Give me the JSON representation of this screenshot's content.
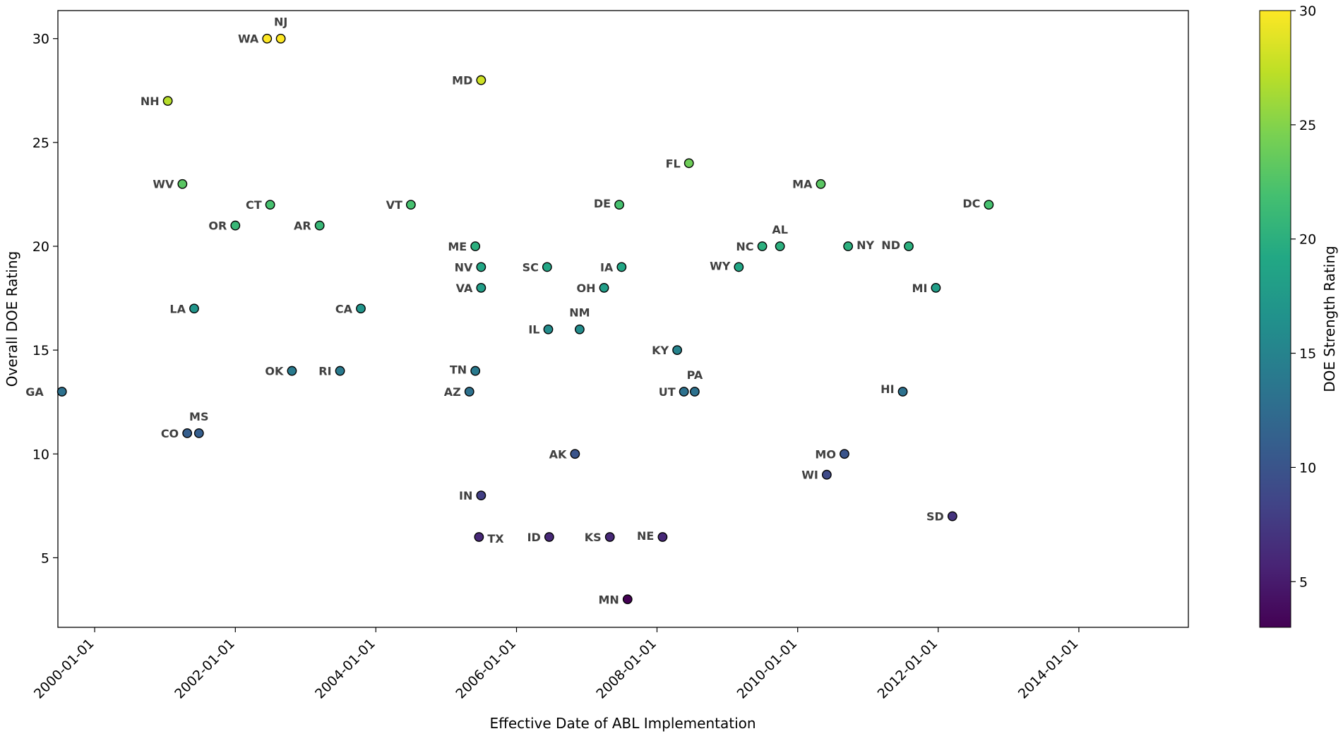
{
  "chart_data": {
    "type": "scatter",
    "xlabel": "Effective Date of ABL Implementation",
    "ylabel": "Overall DOE Rating",
    "x_type": "date",
    "xlim": [
      "1999-06-24",
      "2015-07-24"
    ],
    "ylim": [
      1.65,
      31.35
    ],
    "x_ticks": [
      "2000-01-01",
      "2002-01-01",
      "2004-01-01",
      "2006-01-01",
      "2008-01-01",
      "2010-01-01",
      "2012-01-01",
      "2014-01-01"
    ],
    "y_ticks": [
      5,
      10,
      15,
      20,
      25,
      30
    ],
    "grid": false,
    "colorbar": {
      "label": "DOE Strength Rating",
      "colormap": "viridis",
      "range": [
        3,
        30
      ],
      "ticks": [
        5,
        10,
        15,
        20,
        25,
        30
      ]
    },
    "points": [
      {
        "label": "GA",
        "date": "1999-07-15",
        "value": 13
      },
      {
        "label": "CO",
        "date": "2001-04-26",
        "value": 11
      },
      {
        "label": "MS",
        "date": "2001-06-26",
        "value": 11
      },
      {
        "label": "NH",
        "date": "2001-01-15",
        "value": 27
      },
      {
        "label": "WV",
        "date": "2001-04-01",
        "value": 23
      },
      {
        "label": "LA",
        "date": "2001-06-01",
        "value": 17
      },
      {
        "label": "OR",
        "date": "2002-01-01",
        "value": 21
      },
      {
        "label": "WA",
        "date": "2002-06-15",
        "value": 30
      },
      {
        "label": "NJ",
        "date": "2002-08-25",
        "value": 30
      },
      {
        "label": "CT",
        "date": "2002-07-01",
        "value": 22
      },
      {
        "label": "OK",
        "date": "2002-10-22",
        "value": 14
      },
      {
        "label": "AR",
        "date": "2003-03-15",
        "value": 21
      },
      {
        "label": "RI",
        "date": "2003-06-29",
        "value": 14
      },
      {
        "label": "CA",
        "date": "2003-10-15",
        "value": 17
      },
      {
        "label": "VT",
        "date": "2004-07-01",
        "value": 22
      },
      {
        "label": "ME",
        "date": "2005-06-01",
        "value": 20
      },
      {
        "label": "NV",
        "date": "2005-07-01",
        "value": 19
      },
      {
        "label": "VA",
        "date": "2005-07-01",
        "value": 18
      },
      {
        "label": "TN",
        "date": "2005-06-01",
        "value": 14
      },
      {
        "label": "AZ",
        "date": "2005-05-01",
        "value": 13
      },
      {
        "label": "MD",
        "date": "2005-07-01",
        "value": 28
      },
      {
        "label": "IN",
        "date": "2005-07-01",
        "value": 8
      },
      {
        "label": "TX",
        "date": "2005-06-20",
        "value": 6
      },
      {
        "label": "SC",
        "date": "2006-06-09",
        "value": 19
      },
      {
        "label": "IL",
        "date": "2006-06-15",
        "value": 16
      },
      {
        "label": "ID",
        "date": "2006-06-20",
        "value": 6
      },
      {
        "label": "NM",
        "date": "2006-11-25",
        "value": 16
      },
      {
        "label": "AK",
        "date": "2006-11-01",
        "value": 10
      },
      {
        "label": "OH",
        "date": "2007-04-01",
        "value": 18
      },
      {
        "label": "KS",
        "date": "2007-05-01",
        "value": 6
      },
      {
        "label": "DE",
        "date": "2007-06-19",
        "value": 22
      },
      {
        "label": "IA",
        "date": "2007-07-01",
        "value": 19
      },
      {
        "label": "MN",
        "date": "2007-08-01",
        "value": 3
      },
      {
        "label": "NE",
        "date": "2008-01-30",
        "value": 6
      },
      {
        "label": "KY",
        "date": "2008-04-15",
        "value": 15
      },
      {
        "label": "UT",
        "date": "2008-05-20",
        "value": 13
      },
      {
        "label": "PA",
        "date": "2008-07-15",
        "value": 13
      },
      {
        "label": "FL",
        "date": "2008-06-15",
        "value": 24
      },
      {
        "label": "WY",
        "date": "2009-03-01",
        "value": 19
      },
      {
        "label": "NC",
        "date": "2009-07-01",
        "value": 20
      },
      {
        "label": "AL",
        "date": "2009-10-01",
        "value": 20
      },
      {
        "label": "MA",
        "date": "2010-05-01",
        "value": 23
      },
      {
        "label": "WI",
        "date": "2010-06-01",
        "value": 9
      },
      {
        "label": "MO",
        "date": "2010-09-01",
        "value": 10
      },
      {
        "label": "NY",
        "date": "2010-09-20",
        "value": 20
      },
      {
        "label": "HI",
        "date": "2011-07-01",
        "value": 13
      },
      {
        "label": "ND",
        "date": "2011-08-01",
        "value": 20
      },
      {
        "label": "MI",
        "date": "2011-12-20",
        "value": 18
      },
      {
        "label": "SD",
        "date": "2012-03-15",
        "value": 7
      },
      {
        "label": "DC",
        "date": "2012-09-20",
        "value": 22
      }
    ]
  }
}
